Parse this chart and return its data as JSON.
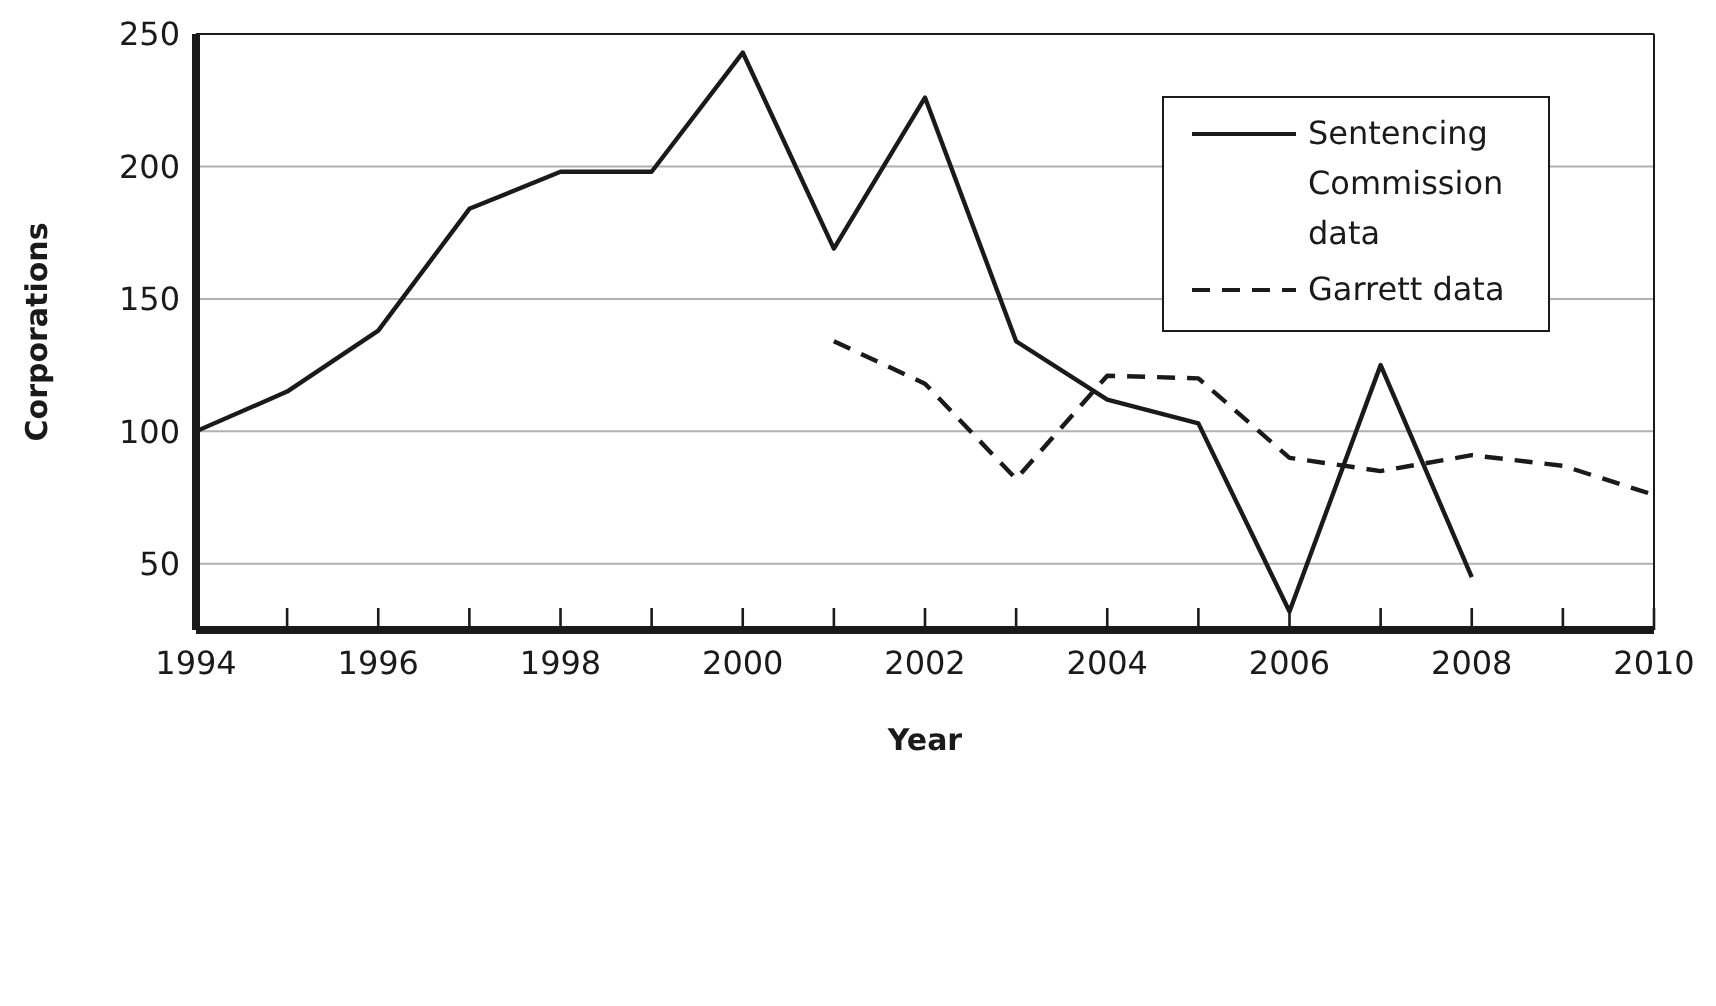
{
  "chart_data": {
    "type": "line",
    "xlabel": "Year",
    "ylabel": "Corporations",
    "xlim": [
      1994,
      2010
    ],
    "xticks": [
      1994,
      {
        "value": 1995,
        "label": null
      },
      1996,
      {
        "value": 1997,
        "label": null
      },
      1998,
      {
        "value": 1999,
        "label": null
      },
      2000,
      {
        "value": 2001,
        "label": null
      },
      2002,
      {
        "value": 2003,
        "label": null
      },
      2004,
      {
        "value": 2005,
        "label": null
      },
      2006,
      {
        "value": 2007,
        "label": null
      },
      2008,
      {
        "value": 2009,
        "label": null
      },
      2010
    ],
    "ylim": [
      25,
      250
    ],
    "yticks": [
      50,
      100,
      150,
      200,
      250
    ],
    "grid": "y",
    "legend": "top right",
    "series": [
      {
        "name": "Sentencing Commission data",
        "color": "#1a1a1a",
        "line_style": "solid",
        "x": [
          1994,
          1995,
          1996,
          1997,
          1998,
          1999,
          2000,
          2001,
          2002,
          2003,
          2004,
          2005,
          2006,
          2007,
          2008
        ],
        "values": [
          100,
          115,
          138,
          184,
          198,
          198,
          243,
          169,
          226,
          134,
          112,
          103,
          32,
          125,
          45
        ]
      },
      {
        "name": "Garrett data",
        "color": "#1a1a1a",
        "line_style": "dashed",
        "x": [
          2001,
          2002,
          2003,
          2004,
          2005,
          2006,
          2007,
          2008,
          2009,
          2010
        ],
        "values": [
          134,
          118,
          82,
          121,
          120,
          90,
          85,
          91,
          87,
          76
        ]
      }
    ]
  }
}
